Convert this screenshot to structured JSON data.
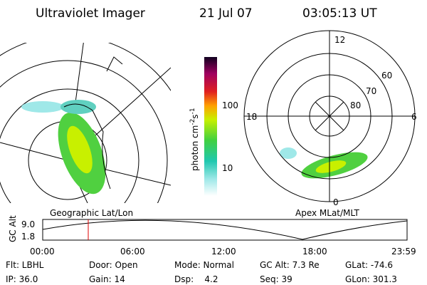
{
  "header": {
    "instrument": "Ultraviolet Imager",
    "date": "21 Jul 07",
    "time": "03:05:13 UT"
  },
  "colorbar": {
    "labels": [
      "100",
      "10"
    ],
    "unit": {
      "base": "photon cm",
      "exp1": "-2",
      "mid": "s",
      "exp2": "-1"
    }
  },
  "polar": {
    "mlt": [
      "12",
      "6",
      "18",
      "0"
    ],
    "mlat": [
      "60",
      "70",
      "80"
    ]
  },
  "panels": {
    "left": "Geographic Lat/Lon",
    "right": "Apex MLat/MLT"
  },
  "altitude": {
    "label": "GC Alt",
    "yticks": [
      "9.0",
      "1.8"
    ],
    "xticks": [
      "00:00",
      "06:00",
      "12:00",
      "18:00",
      "23:59"
    ]
  },
  "info": [
    [
      "Flt: LBHL",
      "Door: Open",
      "Mode: Normal",
      "GC Alt: 7.3 Re",
      "GLat: -74.6"
    ],
    [
      "IP: 36.0",
      "Gain: 14",
      "Dsp:    4.2",
      "Seq: 39",
      "GLon: 301.3"
    ]
  ]
}
